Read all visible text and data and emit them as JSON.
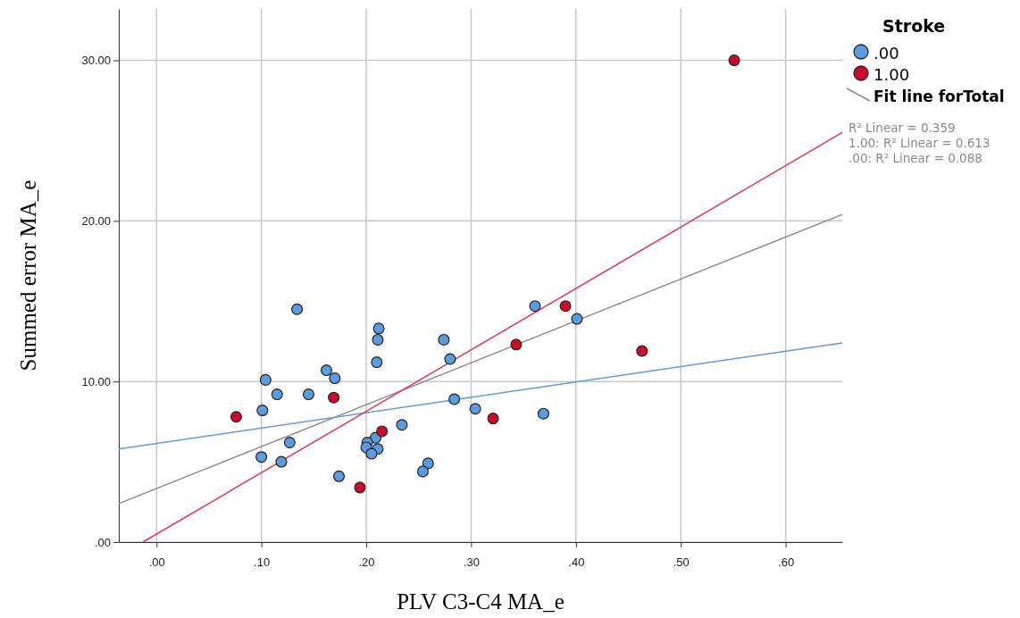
{
  "chart_data": {
    "type": "scatter",
    "xlabel": "PLV C3-C4 MA_e",
    "ylabel": "Summed error MA_e",
    "legend_title": "Stroke",
    "legend": "top right",
    "grid": true,
    "xlim": [
      -0.036,
      0.654
    ],
    "ylim": [
      0,
      33.2
    ],
    "xticks": [
      {
        "value": 0,
        "label": ".00"
      },
      {
        "value": 0.1,
        "label": ".10"
      },
      {
        "value": 0.2,
        "label": ".20"
      },
      {
        "value": 0.3,
        "label": ".30"
      },
      {
        "value": 0.4,
        "label": ".40"
      },
      {
        "value": 0.5,
        "label": ".50"
      },
      {
        "value": 0.6,
        "label": ".60"
      }
    ],
    "yticks": [
      {
        "value": 0,
        "label": ".00"
      },
      {
        "value": 10,
        "label": "10.00"
      },
      {
        "value": 20,
        "label": "20.00"
      },
      {
        "value": 30,
        "label": "30.00"
      }
    ],
    "series": [
      {
        "name": ".00",
        "marker": "circle",
        "color": "#5b9be0",
        "x": [
          0.134,
          0.212,
          0.211,
          0.21,
          0.274,
          0.28,
          0.361,
          0.401,
          0.104,
          0.162,
          0.17,
          0.115,
          0.145,
          0.101,
          0.284,
          0.304,
          0.369,
          0.234,
          0.209,
          0.201,
          0.2,
          0.211,
          0.205,
          0.127,
          0.1,
          0.119,
          0.174,
          0.259,
          0.254
        ],
        "values": [
          14.5,
          13.3,
          12.6,
          11.2,
          12.6,
          11.4,
          14.7,
          13.9,
          10.1,
          10.7,
          10.2,
          9.2,
          9.2,
          8.2,
          8.9,
          8.3,
          8.0,
          7.3,
          6.5,
          6.2,
          5.9,
          5.8,
          5.5,
          6.2,
          5.3,
          5.0,
          4.1,
          4.9,
          4.4
        ]
      },
      {
        "name": "1.00",
        "marker": "circle",
        "color": "#cc0a2c",
        "x": [
          0.076,
          0.169,
          0.215,
          0.194,
          0.321,
          0.343,
          0.39,
          0.463,
          0.551
        ],
        "values": [
          7.8,
          9.0,
          6.9,
          3.4,
          7.7,
          12.3,
          14.7,
          11.9,
          30.0
        ]
      },
      {
        "name": "Fit line forTotal",
        "type": "line",
        "color": "#8c8c8c",
        "x": [
          -0.036,
          0.654
        ],
        "values": [
          2.4,
          20.4
        ]
      },
      {
        "type": "line",
        "color": "#5b9be8",
        "x": [
          -0.036,
          0.654
        ],
        "values": [
          5.8,
          12.4
        ]
      },
      {
        "type": "line",
        "color": "#e8345a",
        "x": [
          -0.013,
          0.654
        ],
        "values": [
          0,
          25.5
        ]
      }
    ],
    "annotations": [
      "R² Linear = 0.359",
      "1.00: R² Linear = 0.613",
      ".00: R² Linear = 0.088"
    ]
  }
}
